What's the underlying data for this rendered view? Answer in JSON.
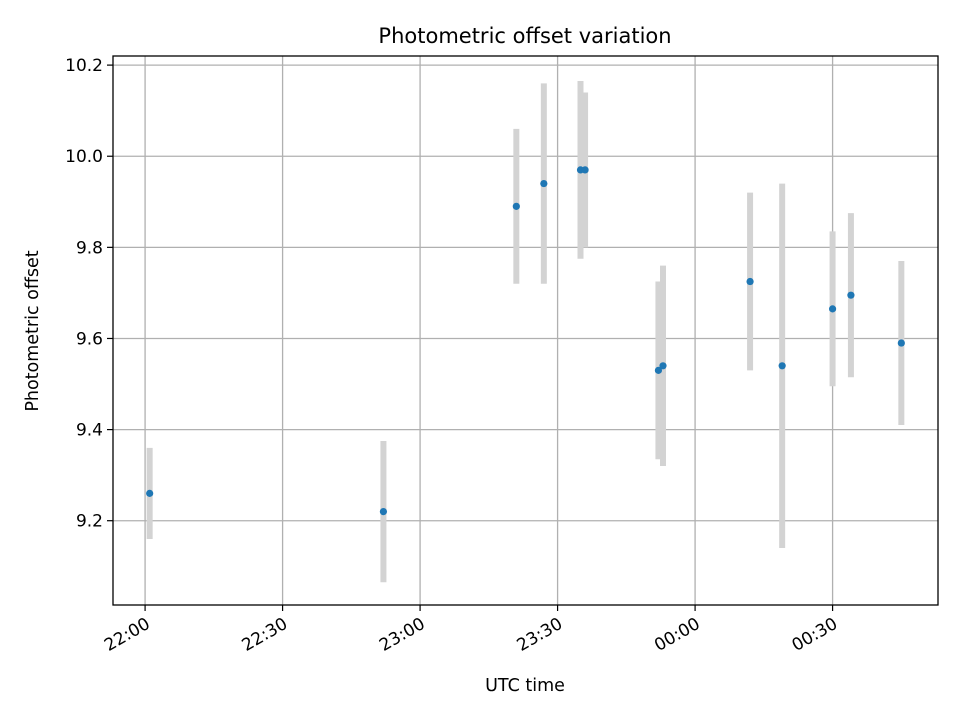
{
  "chart_data": {
    "type": "scatter",
    "title": "Photometric offset variation",
    "xlabel": "UTC time",
    "ylabel": "Photometric offset",
    "x_ticks": [
      "22:00",
      "22:30",
      "23:00",
      "23:30",
      "00:00",
      "00:30"
    ],
    "y_ticks": [
      "9.2",
      "9.4",
      "9.6",
      "9.8",
      "10.0",
      "10.2"
    ],
    "xlim": [
      "21:53",
      "00:53"
    ],
    "ylim": [
      9.015,
      10.22
    ],
    "grid": true,
    "colors": {
      "point": "#1f77b4",
      "errorbar": "#d3d3d3",
      "grid": "#b0b0b0"
    },
    "points": [
      {
        "x": "22:01",
        "y": 9.26,
        "yerr": 0.1
      },
      {
        "x": "22:52",
        "y": 9.22,
        "yerr": 0.155
      },
      {
        "x": "23:21",
        "y": 9.89,
        "yerr": 0.17
      },
      {
        "x": "23:27",
        "y": 9.94,
        "yerr": 0.22
      },
      {
        "x": "23:35",
        "y": 9.97,
        "yerr": 0.195
      },
      {
        "x": "23:36",
        "y": 9.97,
        "yerr": 0.17
      },
      {
        "x": "23:52",
        "y": 9.53,
        "yerr": 0.195
      },
      {
        "x": "23:53",
        "y": 9.54,
        "yerr": 0.22
      },
      {
        "x": "00:12",
        "y": 9.725,
        "yerr": 0.195
      },
      {
        "x": "00:19",
        "y": 9.54,
        "yerr": 0.4
      },
      {
        "x": "00:30",
        "y": 9.665,
        "yerr": 0.17
      },
      {
        "x": "00:34",
        "y": 9.695,
        "yerr": 0.18
      },
      {
        "x": "00:45",
        "y": 9.59,
        "yerr": 0.18
      }
    ]
  }
}
